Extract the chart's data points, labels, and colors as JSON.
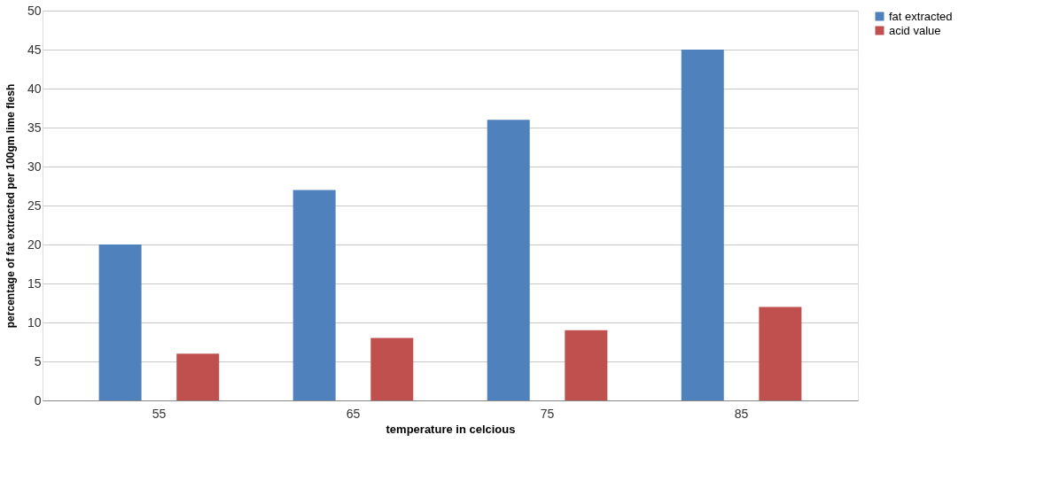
{
  "chart_data": {
    "type": "bar",
    "xlabel": "temperature in celcious",
    "ylabel": "percentage  of fat extracted per 100gm lime flesh",
    "categories": [
      "55",
      "65",
      "75",
      "85"
    ],
    "series": [
      {
        "name": "fat extracted",
        "color": "#4f81bd",
        "values": [
          20,
          27,
          36,
          45
        ]
      },
      {
        "name": "acid value",
        "color": "#c0504d",
        "values": [
          6,
          8,
          9,
          12
        ]
      }
    ],
    "ylim": [
      0,
      50
    ],
    "yticks": [
      0,
      5,
      10,
      15,
      20,
      25,
      30,
      35,
      40,
      45,
      50
    ],
    "grid": "y",
    "legend": "right"
  }
}
